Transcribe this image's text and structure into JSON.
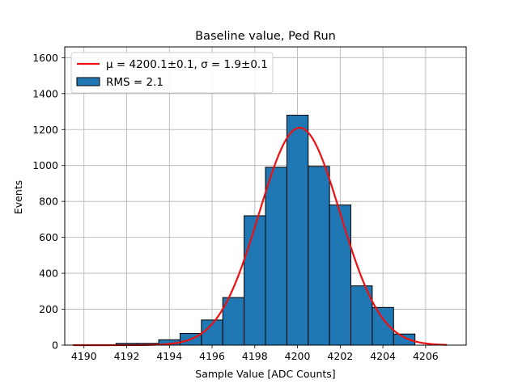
{
  "chart_data": {
    "type": "bar",
    "title": "Baseline value, Ped Run",
    "xlabel": "Sample Value [ADC Counts]",
    "ylabel": "Events",
    "xlim": [
      4189.1,
      4207.9
    ],
    "ylim": [
      0,
      1660
    ],
    "xticks": [
      4190,
      4192,
      4194,
      4196,
      4198,
      4200,
      4202,
      4204,
      4206
    ],
    "yticks": [
      0,
      200,
      400,
      600,
      800,
      1000,
      1200,
      1400,
      1600
    ],
    "grid": true,
    "legend_position": "top-left",
    "histogram": {
      "name": "RMS = 2.1",
      "color": "#1f77b4",
      "edge_color": "#000000",
      "bins": [
        {
          "x0": 4189.5,
          "x1": 4190.5,
          "count": 2
        },
        {
          "x0": 4190.5,
          "x1": 4191.5,
          "count": 0
        },
        {
          "x0": 4191.5,
          "x1": 4192.5,
          "count": 10
        },
        {
          "x0": 4192.5,
          "x1": 4193.5,
          "count": 10
        },
        {
          "x0": 4193.5,
          "x1": 4194.5,
          "count": 30
        },
        {
          "x0": 4194.5,
          "x1": 4195.5,
          "count": 65
        },
        {
          "x0": 4195.5,
          "x1": 4196.5,
          "count": 140
        },
        {
          "x0": 4196.5,
          "x1": 4197.5,
          "count": 265
        },
        {
          "x0": 4197.5,
          "x1": 4198.5,
          "count": 720
        },
        {
          "x0": 4198.5,
          "x1": 4199.5,
          "count": 990
        },
        {
          "x0": 4199.5,
          "x1": 4200.5,
          "count": 1280
        },
        {
          "x0": 4200.5,
          "x1": 4201.5,
          "count": 995
        },
        {
          "x0": 4201.5,
          "x1": 4202.5,
          "count": 780
        },
        {
          "x0": 4202.5,
          "x1": 4203.5,
          "count": 330
        },
        {
          "x0": 4203.5,
          "x1": 4204.5,
          "count": 210
        },
        {
          "x0": 4204.5,
          "x1": 4205.5,
          "count": 62
        }
      ]
    },
    "fit": {
      "name": "μ = 4200.1±0.1, σ = 1.9±0.1",
      "color": "#ee1111",
      "function": "gaussian",
      "mean": 4200.1,
      "sigma": 1.9,
      "amplitude": 1210,
      "x_range": [
        4189.5,
        4207.0
      ]
    }
  }
}
